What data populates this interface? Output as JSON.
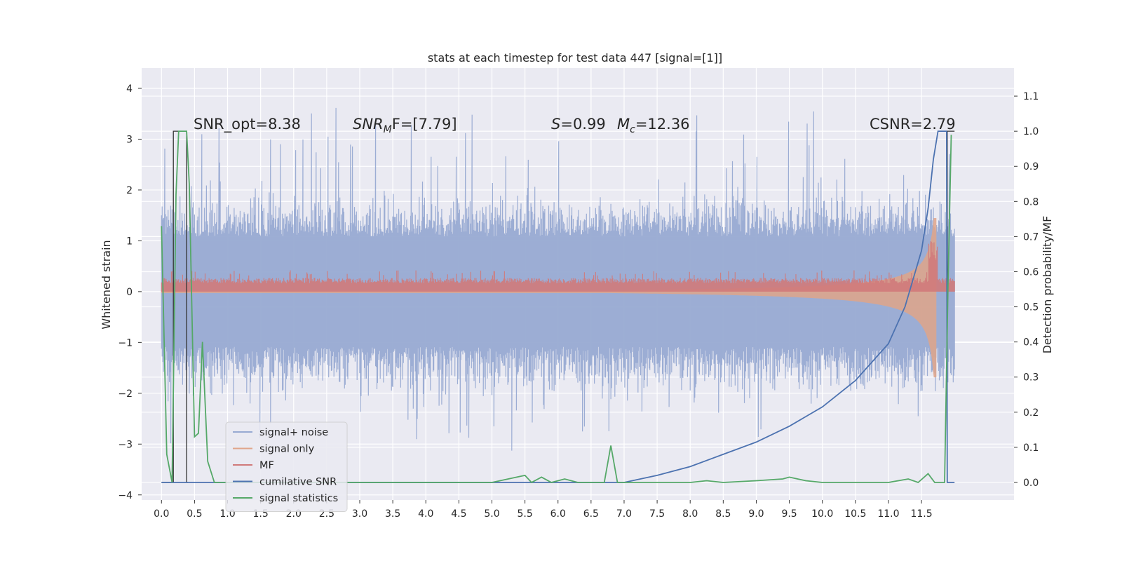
{
  "chart_data": {
    "type": "line",
    "title": "stats at each timestep for test data 447 [signal=[1]]",
    "xlabel": "",
    "ylabel": "Whitened strain",
    "y2label": "Detection probability/MF",
    "xlim": [
      -0.3,
      12.9
    ],
    "ylim": [
      -4.1,
      4.4
    ],
    "y2lim": [
      -0.05,
      1.18
    ],
    "x_ticks": [
      "0.0",
      "0.5",
      "1.0",
      "1.5",
      "2.0",
      "2.5",
      "3.0",
      "3.5",
      "4.0",
      "4.5",
      "5.0",
      "5.5",
      "6.0",
      "6.5",
      "7.0",
      "7.5",
      "8.0",
      "8.5",
      "9.0",
      "9.5",
      "10.0",
      "10.5",
      "11.0",
      "11.5"
    ],
    "y_ticks": [
      "−4",
      "−3",
      "−2",
      "−1",
      "0",
      "1",
      "2",
      "3",
      "4"
    ],
    "y2_ticks": [
      "0.0",
      "0.1",
      "0.2",
      "0.3",
      "0.4",
      "0.5",
      "0.6",
      "0.7",
      "0.8",
      "0.9",
      "1.0",
      "1.1"
    ],
    "grid": true,
    "legend_position": "lower-left",
    "annotations": {
      "snr_opt": "SNR_opt=8.38",
      "snr_mf": "SNR",
      "snr_mf_sub": "M",
      "snr_mf_tail": "F=[7.79]",
      "s_label": "S",
      "s_value": "=0.99",
      "mc_label": "M",
      "mc_sub": "c",
      "mc_value": "=12.36",
      "csnr": "CSNR=2.79"
    },
    "series": [
      {
        "name": "signal+ noise",
        "color": "#98aad2",
        "axis": "left",
        "description_kind": "noise_band",
        "typical_amplitude": 1.45,
        "peak_amplitude": 4.1
      },
      {
        "name": "signal only",
        "color": "#e0a58a",
        "axis": "left",
        "description_kind": "chirp_envelope",
        "start_amp": 0.02,
        "end_amp": 1.6
      },
      {
        "name": "MF",
        "color": "#d07a7a",
        "axis": "left",
        "description_kind": "positive_band",
        "typical_amplitude": 0.3
      },
      {
        "name": "cumilative SNR",
        "color": "#4c72b0",
        "axis": "right",
        "x": [
          0.0,
          7.0,
          7.5,
          8.0,
          8.5,
          9.0,
          9.5,
          10.0,
          10.5,
          11.0,
          11.25,
          11.5,
          11.6,
          11.68,
          11.75,
          11.85,
          11.88,
          11.89,
          12.0
        ],
        "values": [
          0.0,
          0.0,
          0.02,
          0.045,
          0.08,
          0.115,
          0.16,
          0.215,
          0.29,
          0.395,
          0.5,
          0.66,
          0.78,
          0.92,
          1.0,
          1.0,
          1.0,
          0.0,
          0.0
        ]
      },
      {
        "name": "signal statistics",
        "color": "#55a868",
        "axis": "right",
        "x": [
          0.0,
          0.08,
          0.16,
          0.22,
          0.26,
          0.38,
          0.42,
          0.5,
          0.56,
          0.62,
          0.7,
          0.8,
          1.0,
          5.0,
          5.5,
          5.6,
          5.75,
          5.9,
          6.1,
          6.3,
          6.7,
          6.8,
          6.9,
          7.0,
          8.0,
          8.25,
          8.5,
          9.0,
          9.4,
          9.5,
          9.75,
          10.0,
          11.0,
          11.3,
          11.45,
          11.6,
          11.7,
          11.85,
          11.9,
          11.95
        ],
        "values": [
          0.73,
          0.08,
          0.0,
          0.82,
          1.0,
          1.0,
          0.85,
          0.13,
          0.14,
          0.4,
          0.06,
          0.0,
          0.0,
          0.0,
          0.02,
          0.0,
          0.015,
          0.0,
          0.01,
          0.0,
          0.0,
          0.105,
          0.0,
          0.0,
          0.0,
          0.005,
          0.0,
          0.005,
          0.01,
          0.015,
          0.005,
          0.0,
          0.0,
          0.01,
          0.0,
          0.025,
          0.0,
          0.0,
          0.55,
          0.99
        ]
      }
    ],
    "black_lines": [
      {
        "x": [
          0.0,
          0.18,
          0.18,
          0.27
        ],
        "values": [
          0.0,
          0.0,
          1.0,
          1.0
        ]
      },
      {
        "x": [
          0.27,
          0.38,
          0.38,
          0.4
        ],
        "values": [
          1.0,
          1.0,
          0.0,
          0.0
        ]
      },
      {
        "x": [
          11.89,
          11.89,
          12.0
        ],
        "values": [
          0.0,
          1.0,
          1.0
        ]
      }
    ]
  }
}
